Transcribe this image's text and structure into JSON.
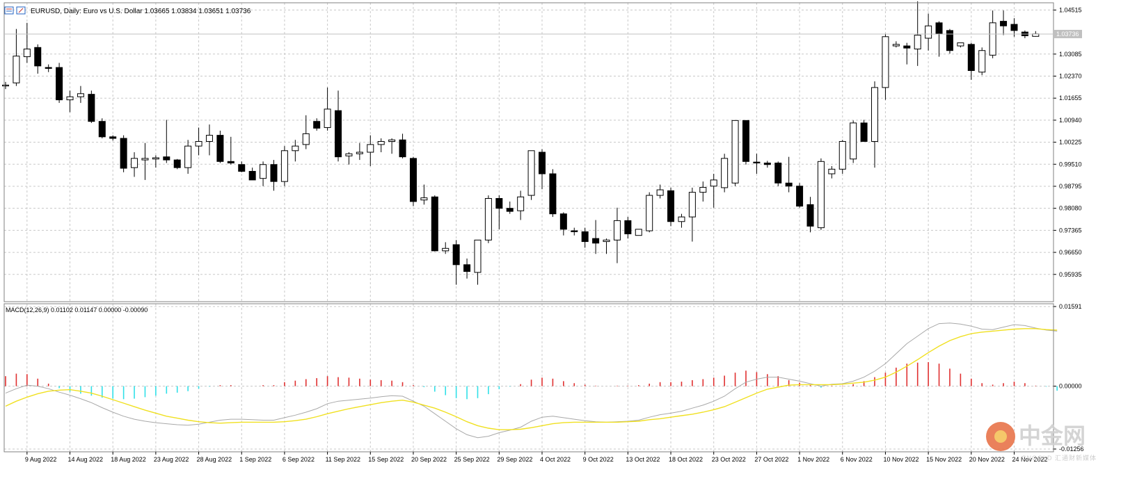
{
  "chart_data": [
    {
      "type": "candlestick",
      "title": "EURUSD, Daily:  Euro vs U.S. Dollar  1.03665 1.03834 1.03651 1.03736",
      "current_price_label": "1.03736",
      "yticks": [
        "1.04515",
        "1.03085",
        "1.02370",
        "1.01655",
        "1.00940",
        "1.00225",
        "0.99510",
        "0.98795",
        "0.98080",
        "0.97365",
        "0.96650",
        "0.95935"
      ],
      "ylim": [
        0.9505,
        1.0475
      ],
      "xticks": [
        {
          "i": 2,
          "label": "9 Aug 2022"
        },
        {
          "i": 6,
          "label": "14 Aug 2022"
        },
        {
          "i": 10,
          "label": "18 Aug 2022"
        },
        {
          "i": 14,
          "label": "23 Aug 2022"
        },
        {
          "i": 18,
          "label": "28 Aug 2022"
        },
        {
          "i": 22,
          "label": "1 Sep 2022"
        },
        {
          "i": 26,
          "label": "6 Sep 2022"
        },
        {
          "i": 30,
          "label": "11 Sep 2022"
        },
        {
          "i": 34,
          "label": "15 Sep 2022"
        },
        {
          "i": 38,
          "label": "20 Sep 2022"
        },
        {
          "i": 42,
          "label": "25 Sep 2022"
        },
        {
          "i": 46,
          "label": "29 Sep 2022"
        },
        {
          "i": 50,
          "label": "4 Oct 2022"
        },
        {
          "i": 54,
          "label": "9 Oct 2022"
        },
        {
          "i": 58,
          "label": "13 Oct 2022"
        },
        {
          "i": 62,
          "label": "18 Oct 2022"
        },
        {
          "i": 66,
          "label": "23 Oct 2022"
        },
        {
          "i": 70,
          "label": "27 Oct 2022"
        },
        {
          "i": 74,
          "label": "1 Nov 2022"
        },
        {
          "i": 78,
          "label": "6 Nov 2022"
        },
        {
          "i": 82,
          "label": "10 Nov 2022"
        },
        {
          "i": 86,
          "label": "15 Nov 2022"
        },
        {
          "i": 90,
          "label": "20 Nov 2022"
        },
        {
          "i": 94,
          "label": "24 Nov 2022"
        }
      ],
      "candles": [
        [
          1.0205,
          1.0218,
          1.0195,
          1.0208
        ],
        [
          1.0215,
          1.039,
          1.0205,
          1.0302
        ],
        [
          1.03,
          1.041,
          1.028,
          1.0325
        ],
        [
          1.033,
          1.034,
          1.0245,
          1.027
        ],
        [
          1.0265,
          1.0275,
          1.025,
          1.0262
        ],
        [
          1.0265,
          1.028,
          1.015,
          1.016
        ],
        [
          1.016,
          1.019,
          1.012,
          1.017
        ],
        [
          1.017,
          1.0205,
          1.015,
          1.018
        ],
        [
          1.0178,
          1.019,
          1.0085,
          1.009
        ],
        [
          1.009,
          1.01,
          1.0035,
          1.004
        ],
        [
          1.004,
          1.0045,
          1.0028,
          1.0035
        ],
        [
          1.0035,
          1.0045,
          0.9925,
          0.9938
        ],
        [
          0.994,
          0.999,
          0.991,
          0.997
        ],
        [
          0.9965,
          1.002,
          0.99,
          0.997
        ],
        [
          0.9968,
          0.998,
          0.994,
          0.9972
        ],
        [
          0.9975,
          1.0095,
          0.9955,
          0.9965
        ],
        [
          0.9965,
          0.9968,
          0.9935,
          0.994
        ],
        [
          0.994,
          1.003,
          0.992,
          1.001
        ],
        [
          1.001,
          1.007,
          0.998,
          1.0025
        ],
        [
          1.0025,
          1.008,
          0.998,
          1.0045
        ],
        [
          1.0045,
          1.006,
          0.9955,
          0.996
        ],
        [
          0.996,
          1.004,
          0.995,
          0.9955
        ],
        [
          0.995,
          0.996,
          0.9925,
          0.9928
        ],
        [
          0.9928,
          0.994,
          0.99,
          0.99
        ],
        [
          0.9905,
          0.996,
          0.988,
          0.995
        ],
        [
          0.995,
          0.9965,
          0.9865,
          0.9895
        ],
        [
          0.9895,
          1.001,
          0.988,
          0.9995
        ],
        [
          0.9995,
          1.003,
          0.996,
          1.001
        ],
        [
          1.0015,
          1.011,
          1.0,
          1.005
        ],
        [
          1.009,
          1.01,
          1.006,
          1.0068
        ],
        [
          1.007,
          1.02,
          1.006,
          1.013
        ],
        [
          1.0125,
          1.019,
          0.996,
          0.9975
        ],
        [
          0.9978,
          0.999,
          0.995,
          0.9985
        ],
        [
          0.9985,
          1.002,
          0.9965,
          0.999
        ],
        [
          0.999,
          1.0045,
          0.9945,
          1.0015
        ],
        [
          1.0015,
          1.0035,
          0.999,
          1.0025
        ],
        [
          1.0025,
          1.0035,
          0.9985,
          1.003
        ],
        [
          1.003,
          1.005,
          0.997,
          0.9975
        ],
        [
          0.997,
          0.9975,
          0.9815,
          0.983
        ],
        [
          0.9835,
          0.9885,
          0.982,
          0.9842
        ],
        [
          0.9845,
          0.985,
          0.9668,
          0.967
        ],
        [
          0.967,
          0.9698,
          0.966,
          0.9678
        ],
        [
          0.969,
          0.9705,
          0.956,
          0.9625
        ],
        [
          0.9625,
          0.9645,
          0.958,
          0.9603
        ],
        [
          0.96,
          0.9705,
          0.956,
          0.9705
        ],
        [
          0.9705,
          0.985,
          0.9695,
          0.984
        ],
        [
          0.984,
          0.985,
          0.974,
          0.9808
        ],
        [
          0.9808,
          0.983,
          0.979,
          0.9798
        ],
        [
          0.98,
          0.9865,
          0.977,
          0.9845
        ],
        [
          0.985,
          0.9995,
          0.9835,
          0.9995
        ],
        [
          0.999,
          1.0,
          0.987,
          0.992
        ],
        [
          0.992,
          0.9935,
          0.978,
          0.979
        ],
        [
          0.979,
          0.9795,
          0.972,
          0.974
        ],
        [
          0.9735,
          0.9745,
          0.972,
          0.9732
        ],
        [
          0.9732,
          0.9745,
          0.968,
          0.97
        ],
        [
          0.971,
          0.977,
          0.966,
          0.9695
        ],
        [
          0.97,
          0.971,
          0.966,
          0.9705
        ],
        [
          0.9705,
          0.981,
          0.963,
          0.9768
        ],
        [
          0.9768,
          0.978,
          0.971,
          0.9725
        ],
        [
          0.972,
          0.974,
          0.972,
          0.974
        ],
        [
          0.9735,
          0.986,
          0.973,
          0.985
        ],
        [
          0.985,
          0.9885,
          0.984,
          0.9868
        ],
        [
          0.9865,
          0.9875,
          0.975,
          0.9765
        ],
        [
          0.9765,
          0.979,
          0.9745,
          0.978
        ],
        [
          0.978,
          0.9875,
          0.97,
          0.986
        ],
        [
          0.986,
          0.9895,
          0.983,
          0.9876
        ],
        [
          0.988,
          0.992,
          0.981,
          0.99
        ],
        [
          0.9875,
          0.9985,
          0.986,
          0.997
        ],
        [
          0.989,
          1.0093,
          0.988,
          1.0093
        ],
        [
          1.0093,
          1.0093,
          0.995,
          0.996
        ],
        [
          0.9958,
          0.9985,
          0.992,
          0.9955
        ],
        [
          0.9955,
          0.9962,
          0.994,
          0.995
        ],
        [
          0.9955,
          0.996,
          0.988,
          0.989
        ],
        [
          0.989,
          0.9975,
          0.986,
          0.988
        ],
        [
          0.988,
          0.989,
          0.981,
          0.9815
        ],
        [
          0.982,
          0.9845,
          0.973,
          0.975
        ],
        [
          0.9745,
          0.997,
          0.9738,
          0.996
        ],
        [
          0.992,
          0.9945,
          0.9905,
          0.9935
        ],
        [
          0.9935,
          1.003,
          0.992,
          1.0025
        ],
        [
          0.9968,
          1.0093,
          0.9955,
          1.0085
        ],
        [
          1.0085,
          1.0095,
          1.0025,
          1.0025
        ],
        [
          1.0025,
          1.022,
          0.994,
          1.02
        ],
        [
          1.02,
          1.0375,
          1.016,
          1.0365
        ],
        [
          1.0335,
          1.035,
          1.033,
          1.034
        ],
        [
          1.0335,
          1.0345,
          1.0275,
          1.0328
        ],
        [
          1.0325,
          1.048,
          1.027,
          1.037
        ],
        [
          1.036,
          1.044,
          1.032,
          1.04
        ],
        [
          1.041,
          1.0415,
          1.03,
          1.0375
        ],
        [
          1.0385,
          1.039,
          1.031,
          1.032
        ],
        [
          1.0335,
          1.034,
          1.033,
          1.0345
        ],
        [
          1.034,
          1.0345,
          1.0225,
          1.0255
        ],
        [
          1.025,
          1.033,
          1.024,
          1.032
        ],
        [
          1.0305,
          1.045,
          1.0295,
          1.041
        ],
        [
          1.0415,
          1.045,
          1.037,
          1.04
        ],
        [
          1.0405,
          1.0425,
          1.0365,
          1.0385
        ],
        [
          1.038,
          1.0385,
          1.036,
          1.0368
        ],
        [
          1.0366,
          1.0383,
          1.0365,
          1.0374
        ]
      ]
    },
    {
      "type": "bar+line",
      "title": "MACD(12,26,9) 0.01102 0.01147 0.00000 -0.00090",
      "yticks": [
        "0.01591",
        "0.00000",
        "-0.01256"
      ],
      "ylim": [
        -0.01256,
        0.01591
      ],
      "series": [
        {
          "kind": "histogram-positive-red",
          "values": []
        },
        {
          "kind": "macd-line",
          "values": [
            -0.0014,
            -0.0005,
            0.0002,
            0.0,
            -0.0005,
            -0.0012,
            -0.0018,
            -0.0025,
            -0.0033,
            -0.0043,
            -0.0052,
            -0.006,
            -0.0066,
            -0.007,
            -0.0073,
            -0.0075,
            -0.0077,
            -0.0078,
            -0.0076,
            -0.0072,
            -0.0068,
            -0.0066,
            -0.0066,
            -0.0067,
            -0.0068,
            -0.0068,
            -0.0063,
            -0.0058,
            -0.0052,
            -0.0045,
            -0.0035,
            -0.003,
            -0.0028,
            -0.0026,
            -0.0024,
            -0.0021,
            -0.0019,
            -0.002,
            -0.003,
            -0.004,
            -0.0055,
            -0.007,
            -0.0085,
            -0.0097,
            -0.0103,
            -0.01,
            -0.0093,
            -0.0088,
            -0.0082,
            -0.007,
            -0.0062,
            -0.006,
            -0.0063,
            -0.0066,
            -0.0069,
            -0.0071,
            -0.0072,
            -0.0071,
            -0.007,
            -0.0068,
            -0.0062,
            -0.0057,
            -0.0054,
            -0.005,
            -0.0044,
            -0.0038,
            -0.003,
            -0.002,
            -0.0005,
            0.0008,
            0.0014,
            0.0018,
            0.0018,
            0.0014,
            0.001,
            0.0005,
            0.0,
            0.0004,
            0.0005,
            0.001,
            0.0018,
            0.003,
            0.0045,
            0.0065,
            0.0085,
            0.01,
            0.0115,
            0.0125,
            0.0126,
            0.0124,
            0.012,
            0.0114,
            0.0113,
            0.0118,
            0.0123,
            0.0121,
            0.0116,
            0.0112,
            0.011
          ]
        },
        {
          "kind": "signal-line",
          "values": [
            -0.004,
            -0.003,
            -0.0022,
            -0.0015,
            -0.001,
            -0.0008,
            -0.0007,
            -0.001,
            -0.0014,
            -0.002,
            -0.0027,
            -0.0034,
            -0.0041,
            -0.0048,
            -0.0054,
            -0.006,
            -0.0064,
            -0.0068,
            -0.0071,
            -0.0073,
            -0.0074,
            -0.0073,
            -0.0072,
            -0.0072,
            -0.0072,
            -0.0072,
            -0.0071,
            -0.0069,
            -0.0066,
            -0.0061,
            -0.0055,
            -0.005,
            -0.0045,
            -0.0041,
            -0.0037,
            -0.0033,
            -0.003,
            -0.0028,
            -0.0032,
            -0.0038,
            -0.0044,
            -0.0052,
            -0.0061,
            -0.0071,
            -0.0079,
            -0.0084,
            -0.0087,
            -0.0087,
            -0.0086,
            -0.0083,
            -0.0079,
            -0.0075,
            -0.0073,
            -0.0072,
            -0.0072,
            -0.0072,
            -0.0072,
            -0.0072,
            -0.0071,
            -0.007,
            -0.0067,
            -0.0065,
            -0.0062,
            -0.0059,
            -0.0056,
            -0.0052,
            -0.0047,
            -0.0041,
            -0.0032,
            -0.0023,
            -0.0014,
            -0.0006,
            -0.0002,
            0.0002,
            0.0003,
            0.0003,
            0.0003,
            0.0003,
            0.0004,
            0.0006,
            0.0008,
            0.0012,
            0.0018,
            0.0028,
            0.004,
            0.0053,
            0.0067,
            0.008,
            0.0091,
            0.0099,
            0.0105,
            0.0108,
            0.011,
            0.0112,
            0.0114,
            0.0115,
            0.0115,
            0.0113,
            0.0112
          ]
        },
        {
          "kind": "histogram",
          "values": [
            0.002,
            0.0025,
            0.0024,
            0.0015,
            0.0005,
            -0.0004,
            -0.0011,
            -0.0015,
            -0.0019,
            -0.0023,
            -0.0025,
            -0.0026,
            -0.0025,
            -0.0022,
            -0.0019,
            -0.0015,
            -0.0013,
            -0.001,
            -0.0005,
            -0.0001,
            0.0002,
            0.0002,
            0.0,
            0.0,
            0.0002,
            0.0002,
            0.0008,
            0.0011,
            0.0014,
            0.0016,
            0.002,
            0.0018,
            0.0017,
            0.0015,
            0.0013,
            0.0012,
            0.0011,
            0.0008,
            0.0002,
            -0.0002,
            -0.0011,
            -0.0018,
            -0.0024,
            -0.0026,
            -0.0024,
            -0.0016,
            -0.0006,
            -0.0001,
            0.0004,
            0.0013,
            0.0017,
            0.0015,
            0.001,
            0.0006,
            0.0003,
            0.0001,
            0.0,
            0.0001,
            0.0001,
            0.0002,
            0.0005,
            0.0008,
            0.0008,
            0.0009,
            0.0012,
            0.0014,
            0.0017,
            0.0021,
            0.0027,
            0.0031,
            0.0028,
            0.0024,
            0.002,
            0.0012,
            0.0007,
            0.0002,
            -0.0003,
            0.0001,
            0.0001,
            0.0004,
            0.001,
            0.0018,
            0.0027,
            0.0037,
            0.0045,
            0.0047,
            0.0048,
            0.0045,
            0.0035,
            0.0025,
            0.0015,
            0.0006,
            0.0003,
            0.0006,
            0.0009,
            0.0006,
            0.0001,
            -0.0001,
            -0.0009
          ]
        }
      ]
    }
  ],
  "watermark": {
    "zh": "中金网",
    "en": "CNGOLD 汇通财新媒体"
  }
}
